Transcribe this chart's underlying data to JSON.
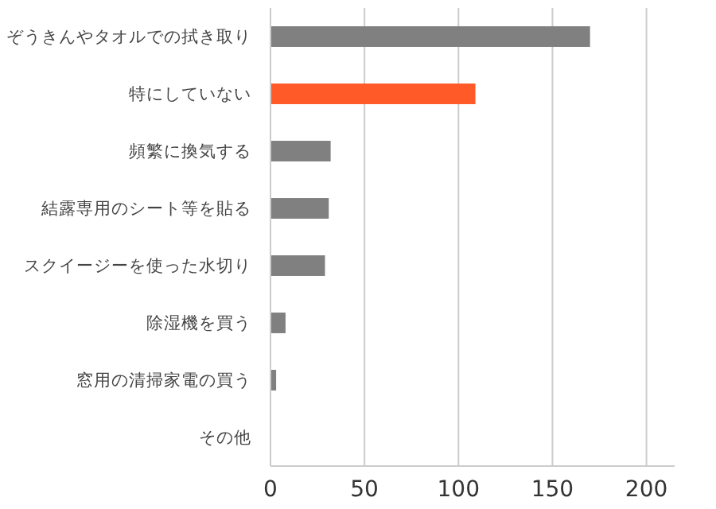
{
  "chart_data": {
    "type": "bar",
    "orientation": "horizontal",
    "categories": [
      "ぞうきんやタオルでの拭き取り",
      "特にしていない",
      "頻繁に換気する",
      "結露専用のシート等を貼る",
      "スクイージーを使った水切り",
      "除湿機を買う",
      "窓用の清掃家電の買う",
      "その他"
    ],
    "values": [
      170,
      109,
      32,
      31,
      29,
      8,
      3,
      0
    ],
    "colors": [
      "#808080",
      "#ff5a28",
      "#808080",
      "#808080",
      "#808080",
      "#808080",
      "#808080",
      "#808080"
    ],
    "xlim": [
      0,
      215
    ],
    "xticks": [
      0,
      50,
      100,
      150,
      200
    ],
    "grid": "x"
  }
}
